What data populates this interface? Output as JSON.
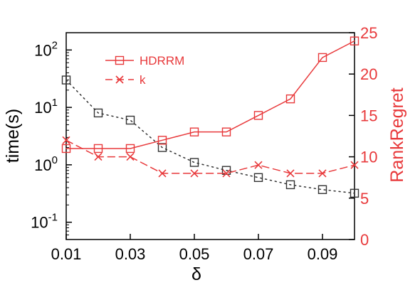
{
  "chart_data": {
    "type": "line",
    "x": [
      0.01,
      0.02,
      0.03,
      0.04,
      0.05,
      0.06,
      0.07,
      0.08,
      0.09,
      0.1
    ],
    "x_ticks": [
      {
        "value": 0.01,
        "label": "0.01"
      },
      {
        "value": 0.03,
        "label": "0.03"
      },
      {
        "value": 0.05,
        "label": "0.05"
      },
      {
        "value": 0.07,
        "label": "0.07"
      },
      {
        "value": 0.09,
        "label": "0.09"
      }
    ],
    "xlabel": "δ",
    "xlim": [
      0.01,
      0.1
    ],
    "y_left": {
      "label": "time(s)",
      "scale": "log",
      "lim": [
        0.05,
        200
      ],
      "ticks": [
        {
          "value": 0.1,
          "base": "10",
          "exp": "-1"
        },
        {
          "value": 1,
          "base": "10",
          "exp": "0"
        },
        {
          "value": 10,
          "base": "10",
          "exp": "1"
        },
        {
          "value": 100,
          "base": "10",
          "exp": "2"
        }
      ]
    },
    "y_right": {
      "label": "RankRegret",
      "scale": "linear",
      "lim": [
        0,
        25
      ],
      "ticks": [
        0,
        5,
        10,
        15,
        20,
        25
      ],
      "color": "#e8393b"
    },
    "series": [
      {
        "name": "",
        "axis": "left",
        "color": "#333333",
        "line": "dotted",
        "marker": "square",
        "values": [
          30,
          8,
          6,
          2,
          1.1,
          0.8,
          0.6,
          0.45,
          0.37,
          0.32
        ]
      },
      {
        "name": "HDRRM",
        "axis": "right",
        "color": "#e8393b",
        "line": "solid",
        "marker": "square",
        "values": [
          11,
          11,
          11,
          12,
          13,
          13,
          15,
          17,
          22,
          24
        ]
      },
      {
        "name": "k",
        "axis": "right",
        "color": "#e8393b",
        "line": "dashed",
        "marker": "x",
        "values": [
          12,
          10,
          10,
          8,
          8,
          8,
          9,
          8,
          8,
          9
        ]
      }
    ],
    "legend": {
      "position": "top-left",
      "entries": [
        "HDRRM",
        "k"
      ]
    }
  }
}
